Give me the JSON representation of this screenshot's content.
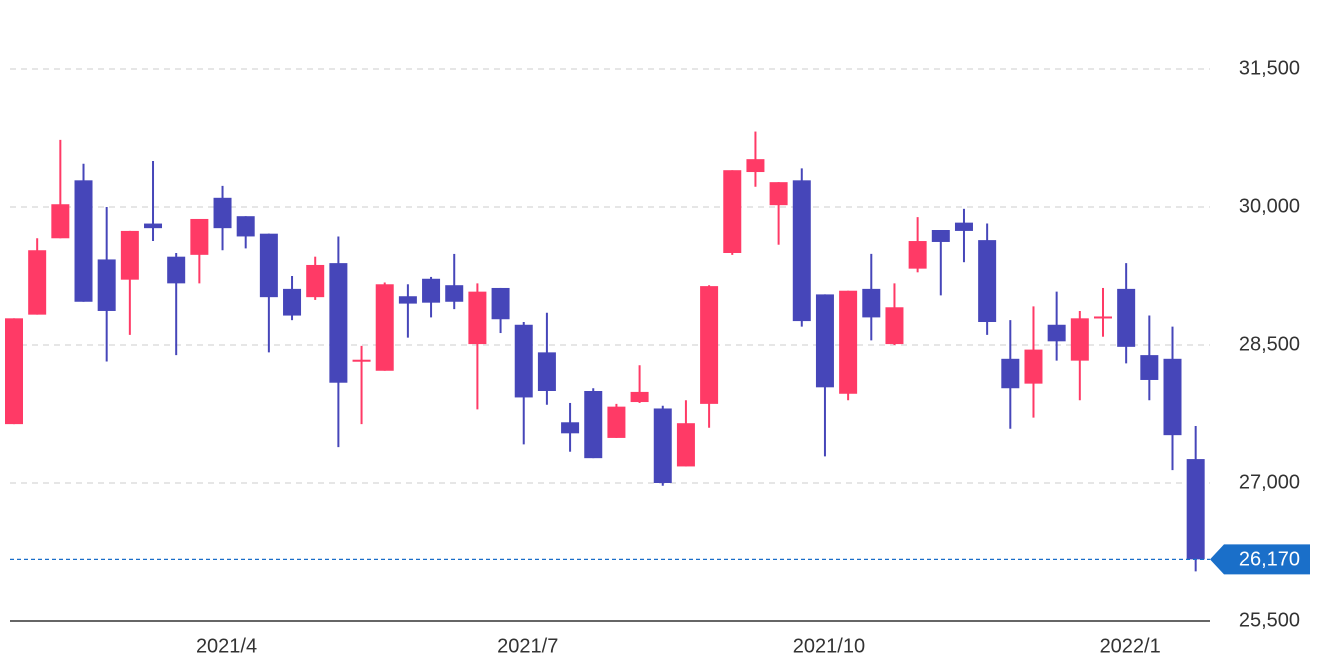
{
  "chart_data": {
    "type": "candlestick",
    "categories": [
      null,
      null,
      null,
      null,
      null,
      null,
      null,
      null,
      null,
      "2021/4",
      null,
      null,
      null,
      null,
      null,
      null,
      null,
      null,
      null,
      null,
      null,
      null,
      "2021/7",
      null,
      null,
      null,
      null,
      null,
      null,
      null,
      null,
      null,
      null,
      null,
      null,
      "2021/10",
      null,
      null,
      null,
      null,
      null,
      null,
      null,
      null,
      null,
      null,
      null,
      null,
      "2022/1",
      null,
      null,
      null
    ],
    "open": [
      27640,
      28830,
      29660,
      30290,
      29430,
      29210,
      29820,
      29460,
      29480,
      30100,
      29900,
      29710,
      29110,
      29020,
      29390,
      28320,
      28220,
      29030,
      29220,
      29150,
      28510,
      29120,
      28720,
      28420,
      27660,
      28000,
      27490,
      27880,
      27810,
      27180,
      27860,
      29500,
      30380,
      30020,
      30290,
      29050,
      27970,
      29110,
      28510,
      29330,
      29750,
      29830,
      29640,
      28350,
      28080,
      28720,
      28330,
      28790,
      29110,
      28390,
      28350,
      27260
    ],
    "high": [
      28790,
      29660,
      30730,
      30470,
      30000,
      29740,
      30500,
      29500,
      29870,
      30230,
      29900,
      29710,
      29250,
      29460,
      29680,
      28490,
      29180,
      29160,
      29240,
      29490,
      29170,
      29120,
      28750,
      28850,
      27870,
      28030,
      27860,
      28280,
      27840,
      27900,
      29150,
      30400,
      30820,
      30270,
      30420,
      29050,
      29090,
      29490,
      29170,
      29890,
      29750,
      29980,
      29820,
      28770,
      28920,
      29080,
      28870,
      29120,
      29390,
      28820,
      28700,
      27620
    ],
    "low": [
      27640,
      28830,
      29660,
      28970,
      28320,
      28610,
      29630,
      28390,
      29170,
      29530,
      29550,
      28420,
      28770,
      28990,
      27390,
      27640,
      28220,
      28580,
      28800,
      28890,
      27800,
      28630,
      27420,
      27850,
      27340,
      27270,
      27490,
      27870,
      26970,
      27180,
      27600,
      29480,
      30220,
      29590,
      28700,
      27290,
      27900,
      28550,
      28500,
      29290,
      29040,
      29400,
      28610,
      27590,
      27710,
      28330,
      27900,
      28590,
      28300,
      27900,
      27140,
      26040
    ],
    "close": [
      28790,
      29530,
      30030,
      28970,
      28870,
      29740,
      29770,
      29170,
      29870,
      29770,
      29680,
      29020,
      28820,
      29370,
      28090,
      28340,
      29160,
      28950,
      28960,
      28970,
      29080,
      28780,
      27930,
      28000,
      27540,
      27270,
      27830,
      27990,
      27000,
      27650,
      29140,
      30400,
      30520,
      30270,
      28760,
      28040,
      29090,
      28800,
      28910,
      29630,
      29620,
      29740,
      28750,
      28030,
      28450,
      28540,
      28790,
      28810,
      28480,
      28120,
      27520,
      26170
    ],
    "up_color": "#ff3a66",
    "down_color": "#4646b9",
    "ylim": [
      25500,
      31500
    ],
    "yticks": [
      {
        "value": 25500,
        "label": "25,500"
      },
      {
        "value": 27000,
        "label": "27,000"
      },
      {
        "value": 28500,
        "label": "28,500"
      },
      {
        "value": 30000,
        "label": "30,000"
      },
      {
        "value": 31500,
        "label": "31,500"
      }
    ],
    "grid": true,
    "last_price": {
      "value": 26170,
      "label": "26,170"
    }
  }
}
